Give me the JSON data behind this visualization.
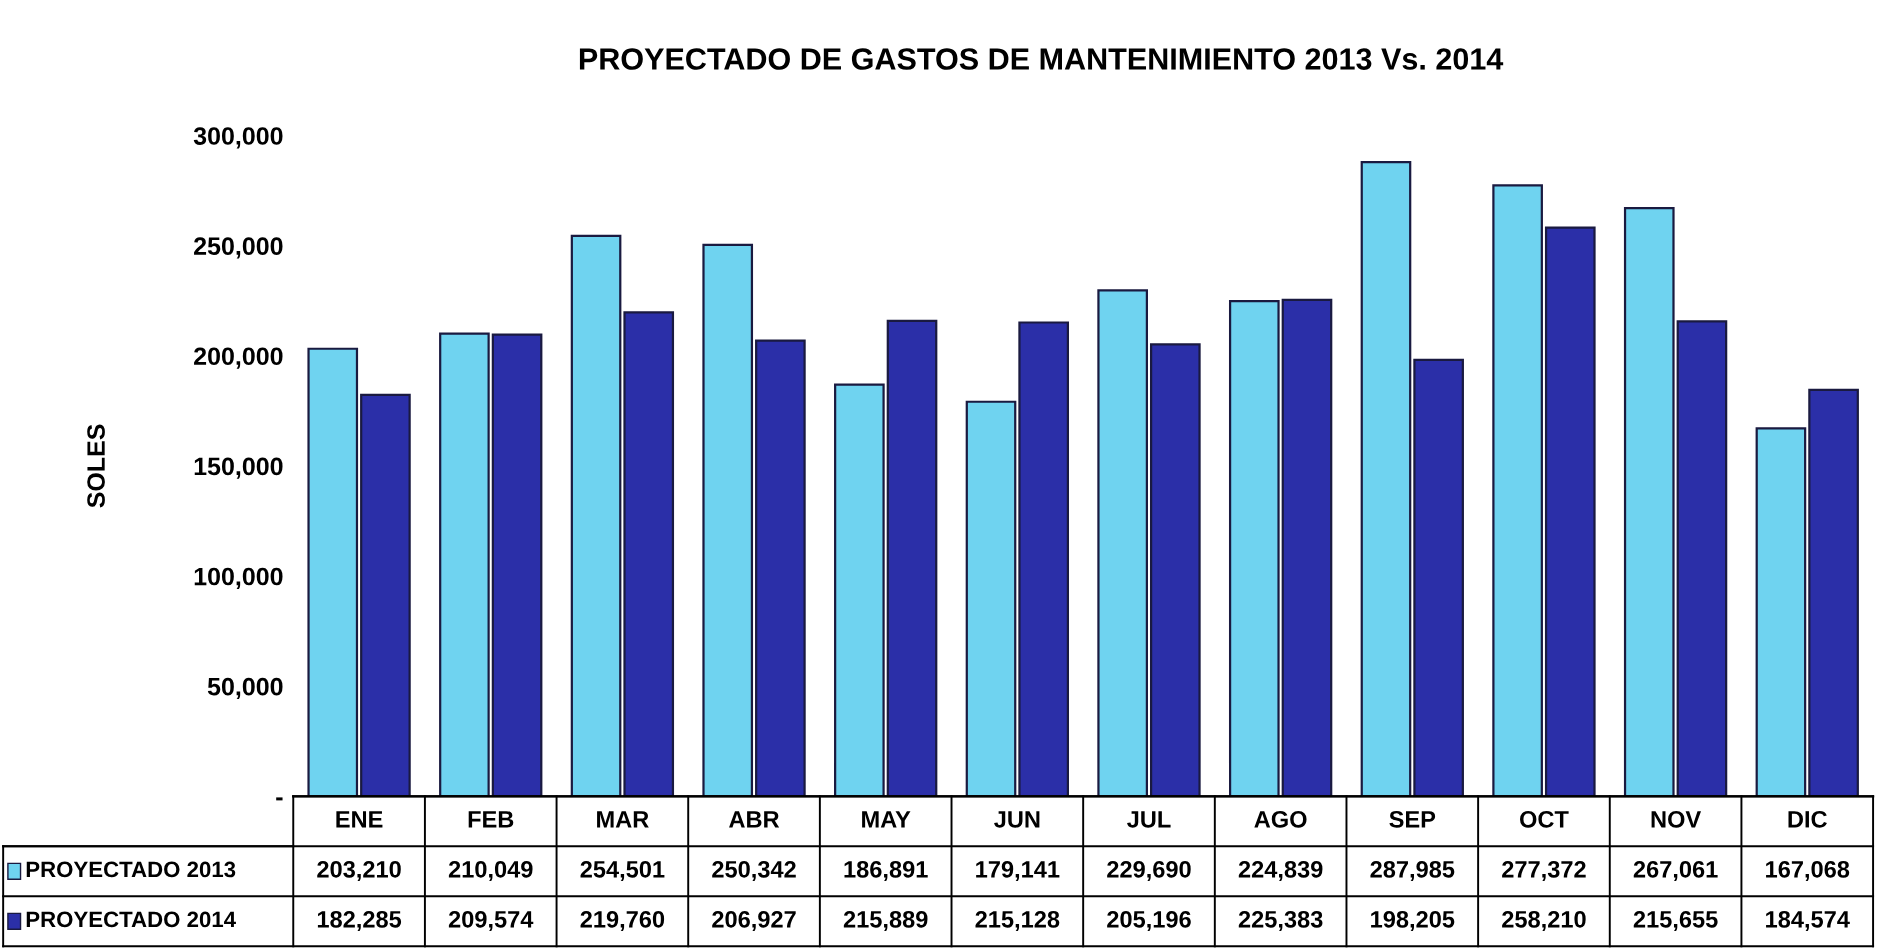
{
  "chart_data": {
    "type": "bar",
    "title": "PROYECTADO DE GASTOS DE MANTENIMIENTO 2013 Vs. 2014",
    "ylabel": "SOLES",
    "categories": [
      "ENE",
      "FEB",
      "MAR",
      "ABR",
      "MAY",
      "JUN",
      "JUL",
      "AGO",
      "SEP",
      "OCT",
      "NOV",
      "DIC"
    ],
    "series": [
      {
        "name": "PROYECTADO 2013",
        "color": "#6fd3f0",
        "values": [
          203210,
          210049,
          254501,
          250342,
          186891,
          179141,
          229690,
          224839,
          287985,
          277372,
          267061,
          167068
        ],
        "value_labels": [
          "203,210",
          "210,049",
          "254,501",
          "250,342",
          "186,891",
          "179,141",
          "229,690",
          "224,839",
          "287,985",
          "277,372",
          "267,061",
          "167,068"
        ]
      },
      {
        "name": "PROYECTADO 2014",
        "color": "#2b2fa8",
        "values": [
          182285,
          209574,
          219760,
          206927,
          215889,
          215128,
          205196,
          225383,
          198205,
          258210,
          215655,
          184574
        ],
        "value_labels": [
          "182,285",
          "209,574",
          "219,760",
          "206,927",
          "215,889",
          "215,128",
          "205,196",
          "225,383",
          "198,205",
          "258,210",
          "215,655",
          "184,574"
        ]
      }
    ],
    "ylim": [
      0,
      300000
    ],
    "yticks": [
      {
        "value": 0,
        "label": "-"
      },
      {
        "value": 50000,
        "label": "50,000"
      },
      {
        "value": 100000,
        "label": "100,000"
      },
      {
        "value": 150000,
        "label": "150,000"
      },
      {
        "value": 200000,
        "label": "200,000"
      },
      {
        "value": 250000,
        "label": "250,000"
      },
      {
        "value": 300000,
        "label": "300,000"
      }
    ],
    "legend": "bottom",
    "grid": false
  }
}
